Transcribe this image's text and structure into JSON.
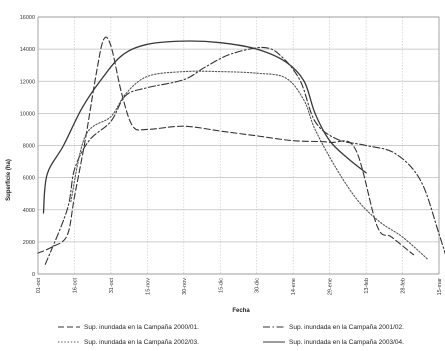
{
  "chart_data": {
    "type": "line",
    "xlabel": "Fecha",
    "ylabel": "Superficie (ha)",
    "ylim": [
      0,
      16000
    ],
    "yticks": [
      "0",
      "2000",
      "4000",
      "6000",
      "8000",
      "10000",
      "12000",
      "14000",
      "16000"
    ],
    "x_categories": [
      "01-oct",
      "16-oct",
      "31-oct",
      "15-nov",
      "30-nov",
      "15-dic",
      "30-dic",
      "14-ene",
      "29-ene",
      "13-feb",
      "28-feb",
      "15-mar"
    ],
    "grid": true,
    "legend_position": "bottom",
    "series": [
      {
        "name": "Sup. inundada en la Campaña 2000/01.",
        "style": "dashed",
        "points": [
          [
            0,
            1300
          ],
          [
            0.4,
            1700
          ],
          [
            0.8,
            2400
          ],
          [
            1.0,
            4800
          ],
          [
            1.3,
            8400
          ],
          [
            1.6,
            12500
          ],
          [
            1.8,
            14600
          ],
          [
            2.0,
            14200
          ],
          [
            2.3,
            11200
          ],
          [
            2.6,
            9200
          ],
          [
            3.0,
            9000
          ],
          [
            4.0,
            9200
          ],
          [
            5.0,
            8900
          ],
          [
            6.0,
            8600
          ],
          [
            7.0,
            8300
          ],
          [
            8.0,
            8200
          ],
          [
            8.7,
            7800
          ],
          [
            9.3,
            3000
          ],
          [
            9.7,
            2300
          ],
          [
            10.3,
            1200
          ]
        ]
      },
      {
        "name": "Sup. inundada en la Campaña 2001/02.",
        "style": "dash-dot",
        "points": [
          [
            0.2,
            600
          ],
          [
            0.8,
            4000
          ],
          [
            1.0,
            6500
          ],
          [
            1.4,
            8300
          ],
          [
            2.0,
            9500
          ],
          [
            2.4,
            11100
          ],
          [
            3.0,
            11600
          ],
          [
            4.0,
            12100
          ],
          [
            4.6,
            12900
          ],
          [
            5.3,
            13700
          ],
          [
            6.2,
            14100
          ],
          [
            6.7,
            13500
          ],
          [
            7.2,
            12000
          ],
          [
            7.6,
            9500
          ],
          [
            8.2,
            8400
          ],
          [
            9.0,
            8000
          ],
          [
            9.8,
            7500
          ],
          [
            10.5,
            5800
          ],
          [
            11.0,
            2500
          ],
          [
            11.3,
            300
          ]
        ]
      },
      {
        "name": "Sup. inundada en la Campaña 2002/03.",
        "style": "dotted",
        "points": [
          [
            0.9,
            4500
          ],
          [
            1.3,
            8600
          ],
          [
            2.0,
            9800
          ],
          [
            2.4,
            11200
          ],
          [
            3.0,
            12300
          ],
          [
            4.0,
            12600
          ],
          [
            5.0,
            12600
          ],
          [
            6.0,
            12500
          ],
          [
            6.8,
            12200
          ],
          [
            7.3,
            10800
          ],
          [
            7.6,
            9000
          ],
          [
            8.2,
            6500
          ],
          [
            8.8,
            4500
          ],
          [
            9.4,
            3200
          ],
          [
            10.0,
            2300
          ],
          [
            10.7,
            900
          ]
        ]
      },
      {
        "name": "Sup. inundada en la Campaña 2003/04.",
        "style": "solid",
        "points": [
          [
            0.15,
            3800
          ],
          [
            0.25,
            6200
          ],
          [
            0.7,
            8000
          ],
          [
            1.2,
            10300
          ],
          [
            1.7,
            12000
          ],
          [
            2.3,
            13600
          ],
          [
            3.0,
            14300
          ],
          [
            4.0,
            14500
          ],
          [
            5.0,
            14400
          ],
          [
            6.0,
            14000
          ],
          [
            6.8,
            13200
          ],
          [
            7.3,
            12000
          ],
          [
            7.6,
            10000
          ],
          [
            8.0,
            8300
          ],
          [
            8.5,
            7200
          ],
          [
            9.0,
            6300
          ]
        ]
      }
    ]
  }
}
